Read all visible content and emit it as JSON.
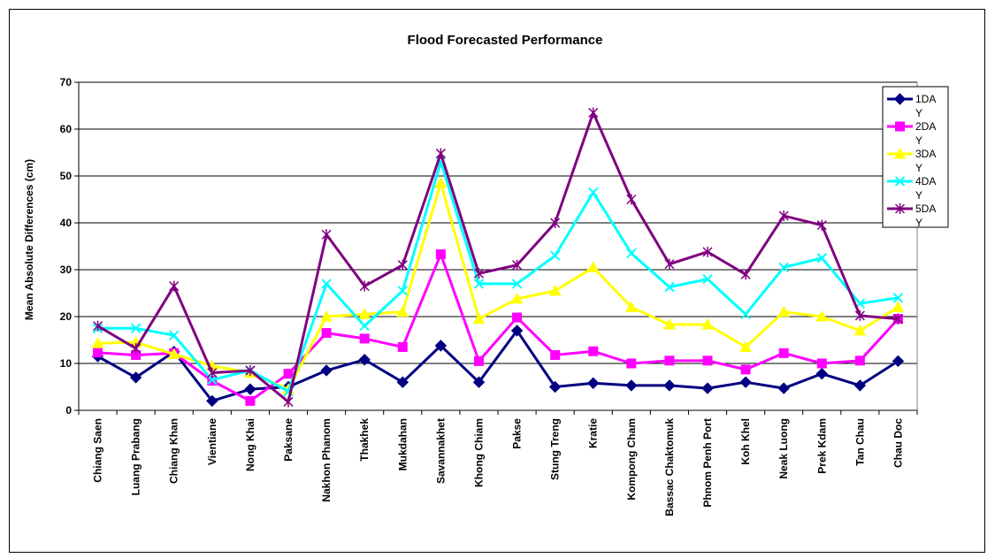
{
  "chart_data": {
    "type": "line",
    "title": "Flood Forecasted Performance",
    "xlabel": "",
    "ylabel": "Mean Absolute Differences (cm)",
    "ylim": [
      0,
      70
    ],
    "yticks": [
      0,
      10,
      20,
      30,
      40,
      50,
      60,
      70
    ],
    "grid": true,
    "legend_position": "top-right",
    "categories": [
      "Chiang Saen",
      "Luang Prabang",
      "Chiang Khan",
      "Vientiane",
      "Nong Khai",
      "Paksane",
      "Nakhon Phanom",
      "Thakhek",
      "Mukdahan",
      "Savannakhet",
      "Khong Chiam",
      "Pakse",
      "Stung Treng",
      "Kratie",
      "Kompong Cham",
      "Bassac Chaktomuk",
      "Phnom Penh Port",
      "Koh Khel",
      "Neak Luong",
      "Prek Kdam",
      "Tan Chau",
      "Chau Doc"
    ],
    "series": [
      {
        "name": "1DAY",
        "legend_lines": [
          "1DA",
          "Y"
        ],
        "color": "#000080",
        "marker": "diamond",
        "values": [
          11.5,
          7,
          12.5,
          2,
          4.5,
          5,
          8.5,
          10.8,
          6,
          13.8,
          6,
          17,
          5,
          5.8,
          5.3,
          5.3,
          4.7,
          6,
          4.7,
          7.8,
          5.3,
          10.5
        ]
      },
      {
        "name": "2DAY",
        "legend_lines": [
          "2DA",
          "Y"
        ],
        "color": "#FF00FF",
        "marker": "square",
        "values": [
          12.3,
          11.8,
          12.2,
          6.3,
          2,
          7.8,
          16.5,
          15.3,
          13.5,
          33.3,
          10.5,
          19.8,
          11.8,
          12.6,
          10,
          10.6,
          10.6,
          8.7,
          12.2,
          10,
          10.6,
          19.5
        ]
      },
      {
        "name": "3DAY",
        "legend_lines": [
          "3DA",
          "Y"
        ],
        "color": "#FFFF00",
        "marker": "triangle",
        "values": [
          14.3,
          14.5,
          12,
          9.5,
          8,
          4.5,
          20,
          20.5,
          21,
          48.5,
          19.5,
          23.8,
          25.5,
          30.5,
          22,
          18.3,
          18.3,
          13.5,
          21,
          20,
          17,
          22
        ]
      },
      {
        "name": "4DAY",
        "legend_lines": [
          "4DA",
          "Y"
        ],
        "color": "#00FFFF",
        "marker": "x",
        "values": [
          17.5,
          17.5,
          16,
          6.5,
          8.5,
          4,
          27,
          18,
          25.5,
          53,
          27,
          27,
          33,
          46.5,
          33.5,
          26.3,
          28,
          20.5,
          30.5,
          32.5,
          22.8,
          24
        ]
      },
      {
        "name": "5DAY",
        "legend_lines": [
          "5DA",
          "Y"
        ],
        "color": "#800080",
        "marker": "star",
        "values": [
          18,
          13.2,
          26.5,
          8,
          8.5,
          1.8,
          37.5,
          26.5,
          31,
          54.8,
          29.2,
          31,
          40,
          63.5,
          45,
          31.2,
          33.8,
          29,
          41.5,
          39.5,
          20.2,
          19.5
        ]
      }
    ]
  }
}
